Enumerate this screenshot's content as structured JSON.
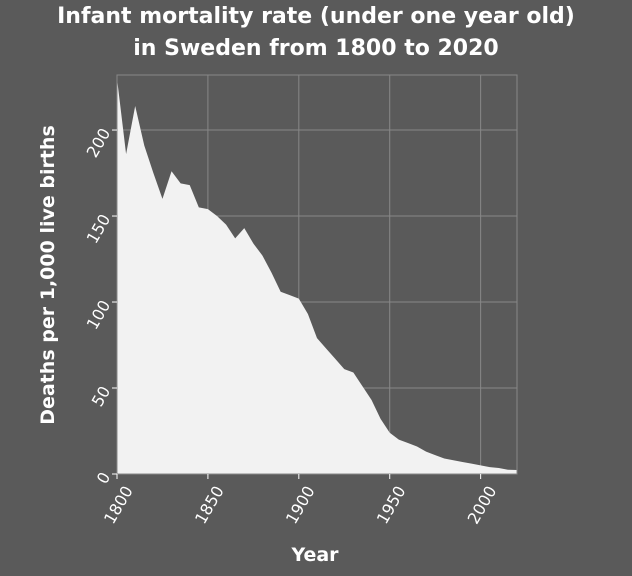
{
  "chart_data": {
    "type": "area",
    "title_lines": [
      "Infant mortality rate (under one year old)",
      "in Sweden from 1800 to 2020"
    ],
    "xlabel": "Year",
    "ylabel": "Deaths per 1,000 live births",
    "xlim": [
      1800,
      2020
    ],
    "ylim": [
      0,
      232
    ],
    "xticks": [
      1800,
      1850,
      1900,
      1950,
      2000
    ],
    "yticks": [
      0,
      50,
      100,
      150,
      200
    ],
    "grid": true,
    "legend": "none",
    "colors": {
      "background": "#5a5a5a",
      "fill": "#f2f2f2",
      "grid": "#888888",
      "text": "#ffffff"
    },
    "x": [
      1800,
      1805,
      1810,
      1815,
      1820,
      1825,
      1830,
      1835,
      1840,
      1845,
      1850,
      1855,
      1860,
      1865,
      1870,
      1875,
      1880,
      1885,
      1890,
      1895,
      1900,
      1905,
      1910,
      1915,
      1920,
      1925,
      1930,
      1935,
      1940,
      1945,
      1950,
      1955,
      1960,
      1965,
      1970,
      1975,
      1980,
      1985,
      1990,
      1995,
      2000,
      2005,
      2010,
      2015,
      2020
    ],
    "values": [
      230,
      186,
      214,
      191,
      175,
      160,
      176,
      169,
      168,
      155,
      154,
      150,
      145,
      137,
      143,
      134,
      127,
      117,
      106,
      104,
      102,
      93,
      79,
      73,
      67,
      61,
      59,
      51,
      43,
      32,
      24,
      20,
      18,
      16,
      13,
      11,
      9,
      8,
      7,
      6,
      5,
      4,
      3.5,
      2.5,
      2.3
    ]
  }
}
